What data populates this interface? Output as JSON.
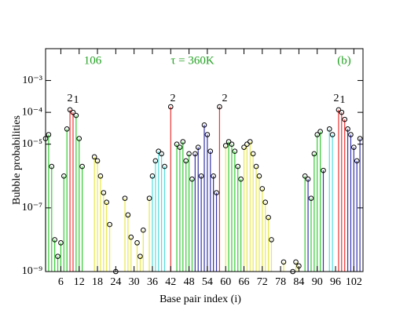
{
  "chart_data": {
    "type": "stem",
    "xlabel": "Base pair index (i)",
    "ylabel": "Bubble probabilities",
    "yscale": "log",
    "xlim": [
      1,
      105
    ],
    "ylim": [
      1e-09,
      0.01
    ],
    "xticks": [
      6,
      12,
      18,
      24,
      30,
      36,
      42,
      48,
      54,
      60,
      66,
      72,
      78,
      84,
      90,
      96,
      102
    ],
    "yticks": [
      {
        "value": 1e-09,
        "label": "10⁻⁹"
      },
      {
        "value": 1e-07,
        "label": "10⁻⁷"
      },
      {
        "value": 1e-05,
        "label": "10⁻⁵"
      },
      {
        "value": 0.0001,
        "label": "10⁻⁴"
      },
      {
        "value": 0.001,
        "label": "10⁻³"
      }
    ],
    "annotation_color": "#22a022",
    "annotations": [
      "106",
      "τ = 360K",
      "(b)"
    ],
    "peak_labels": [
      "2",
      "1",
      "2",
      "2",
      "2",
      "1"
    ],
    "marker_color": "#000000",
    "series": [
      {
        "color": "#33cc33",
        "x": [
          1,
          2,
          3,
          4,
          5,
          6,
          7,
          8,
          11,
          12,
          13,
          44,
          45,
          46,
          47,
          48,
          49,
          61,
          62,
          63,
          64,
          65,
          86,
          88,
          89,
          90,
          91
        ],
        "values": [
          1.5e-05,
          2e-05,
          2e-06,
          1e-08,
          3e-09,
          8e-09,
          1e-06,
          3e-05,
          8e-05,
          1.5e-05,
          2e-06,
          1e-05,
          8e-06,
          1.2e-05,
          3e-06,
          5e-06,
          8e-07,
          1.2e-05,
          1e-05,
          6e-06,
          2e-06,
          8e-07,
          1e-06,
          2e-07,
          5e-06,
          2e-05,
          2.5e-05
        ]
      },
      {
        "color": "#e8e84a",
        "x": [
          17,
          18,
          19,
          20,
          21,
          22,
          24,
          27,
          28,
          29,
          31,
          32,
          33,
          35,
          60,
          66,
          67,
          68,
          69,
          70,
          71,
          72,
          73,
          74,
          75,
          79,
          82,
          83,
          84
        ],
        "values": [
          4e-06,
          3e-06,
          1e-06,
          3e-07,
          1.5e-07,
          3e-08,
          1e-09,
          2e-07,
          6e-08,
          1.2e-08,
          8e-09,
          3e-09,
          2e-08,
          2e-07,
          9e-06,
          8e-06,
          1e-05,
          1.2e-05,
          5e-06,
          2e-06,
          1e-06,
          4e-07,
          1.5e-07,
          5e-08,
          1e-08,
          2e-09,
          1e-09,
          2e-09,
          1.5e-09
        ]
      },
      {
        "color": "#55dddd",
        "x": [
          36,
          37,
          38,
          39,
          40,
          94,
          95
        ],
        "values": [
          1e-06,
          3e-06,
          6e-06,
          5e-06,
          2e-06,
          3e-05,
          2e-05
        ]
      },
      {
        "color": "#ee3333",
        "x": [
          9,
          10,
          42,
          58,
          97,
          98,
          99
        ],
        "values": [
          0.00012,
          0.0001,
          0.00015,
          0.00015,
          0.00012,
          0.0001,
          6e-05
        ]
      },
      {
        "color": "#3333aa",
        "x": [
          50,
          51,
          52,
          53,
          54,
          55,
          56,
          57,
          87,
          92,
          100,
          101,
          102,
          103,
          104
        ],
        "values": [
          5e-06,
          8e-06,
          1e-06,
          4e-05,
          2e-05,
          6e-06,
          1e-06,
          3e-07,
          8e-07,
          1.5e-06,
          3e-05,
          2e-05,
          8e-06,
          3e-06,
          1.5e-05
        ]
      }
    ]
  }
}
